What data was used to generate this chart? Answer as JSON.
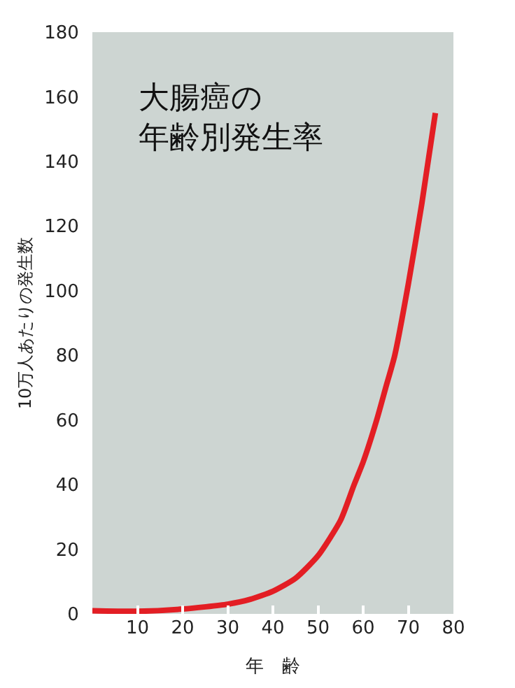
{
  "chart_data": {
    "type": "line",
    "title": "大腸癌の年齢別発生率",
    "xlabel": "年　齢",
    "ylabel": "10万人あたりの発生数",
    "x": [
      0,
      10,
      20,
      30,
      35,
      40,
      45,
      50,
      55,
      58,
      60,
      63,
      65,
      67,
      70,
      73,
      76
    ],
    "series": [
      {
        "color": "#e31e24",
        "values": [
          1,
          0.8,
          1.5,
          3,
          4.5,
          7,
          11,
          18,
          29,
          40,
          47,
          60,
          70,
          80,
          102,
          127,
          155
        ]
      }
    ],
    "xlim": [
      0,
      80
    ],
    "xticks": [
      10,
      20,
      30,
      40,
      50,
      60,
      70,
      80
    ],
    "ylim": [
      0,
      180
    ],
    "yticks": [
      0,
      20,
      40,
      60,
      80,
      100,
      120,
      140,
      160,
      180
    ],
    "grid": false,
    "marker": "none",
    "line_style": "solid"
  }
}
